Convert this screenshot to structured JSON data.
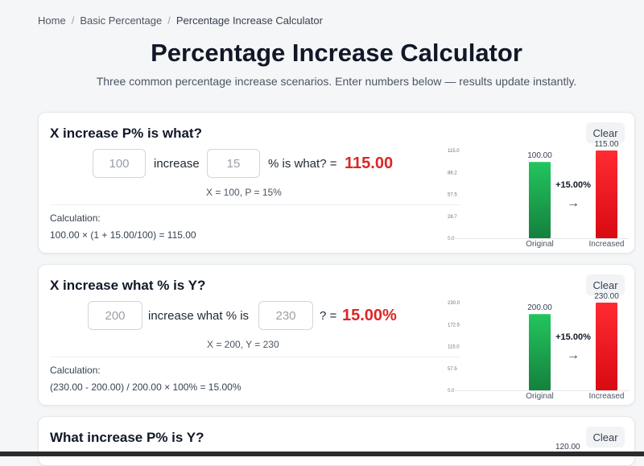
{
  "breadcrumb": {
    "items": [
      "Home",
      "Basic Percentage",
      "Percentage Increase Calculator"
    ],
    "separator": "/"
  },
  "page": {
    "title": "Percentage Increase Calculator",
    "subtitle": "Three common percentage increase scenarios. Enter numbers below — results update instantly."
  },
  "colors": {
    "result_red": "#dc2626",
    "bar_green": "#16a34a",
    "bar_red": "#ef1c24"
  },
  "cards": [
    {
      "title": "X increase P% is what?",
      "clear_label": "Clear",
      "input_a": "100",
      "text_mid": "increase",
      "input_b": "15",
      "text_end": "% is what? =",
      "result": "115.00",
      "vars": "X = 100, P = 15%",
      "calc_label": "Calculation:",
      "calc_formula": "100.00 × (1 + 15.00/100) = 115.00",
      "chart_data": {
        "type": "bar",
        "categories": [
          "Original",
          "Increased"
        ],
        "values": [
          100,
          115
        ],
        "value_labels": [
          "100.00",
          "115.00"
        ],
        "ylim": [
          0,
          115
        ],
        "ticks": [
          "0.0",
          "28.7",
          "57.5",
          "86.2",
          "115.0"
        ],
        "change_label": "+15.00%",
        "arrow": "→"
      }
    },
    {
      "title": "X increase what % is Y?",
      "clear_label": "Clear",
      "input_a": "200",
      "text_mid": "increase what % is",
      "input_b": "230",
      "text_end": "? =",
      "result": "15.00%",
      "vars": "X = 200, Y = 230",
      "calc_label": "Calculation:",
      "calc_formula": "(230.00 - 200.00) / 200.00 × 100% = 15.00%",
      "chart_data": {
        "type": "bar",
        "categories": [
          "Original",
          "Increased"
        ],
        "values": [
          200,
          230
        ],
        "value_labels": [
          "200.00",
          "230.00"
        ],
        "ylim": [
          0,
          230
        ],
        "ticks": [
          "0.0",
          "57.5",
          "115.0",
          "172.5",
          "230.0"
        ],
        "change_label": "+15.00%",
        "arrow": "→"
      }
    },
    {
      "title": "What increase P% is Y?",
      "clear_label": "Clear",
      "top_value_label": "120.00"
    }
  ]
}
